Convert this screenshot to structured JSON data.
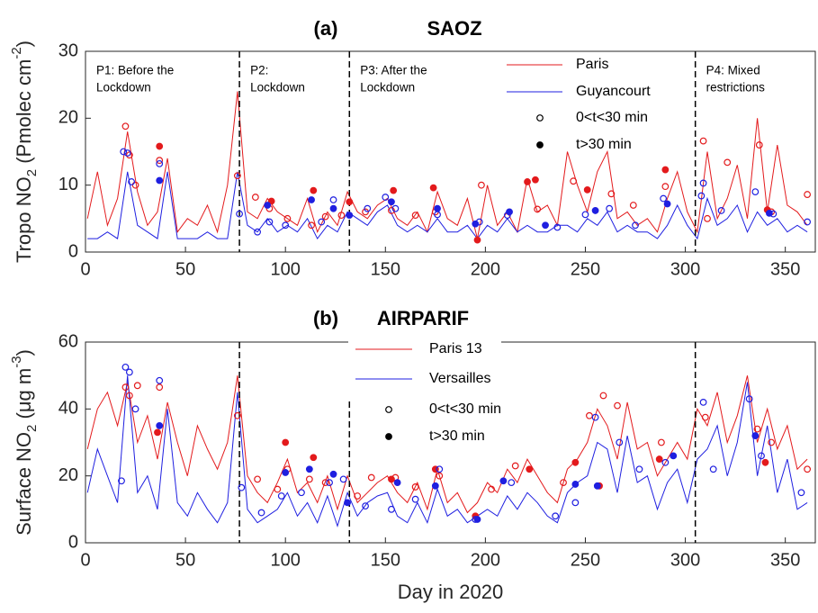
{
  "chart_data": [
    {
      "type": "line",
      "panel": "(a)",
      "title": "SAOZ",
      "ylabel": [
        "Tropo NO",
        "2",
        " (Pmolec cm",
        "-2",
        ")"
      ],
      "xlim": [
        0,
        365
      ],
      "xticks": [
        0,
        50,
        100,
        150,
        200,
        250,
        300,
        350
      ],
      "ylim": [
        0,
        30
      ],
      "yticks": [
        0,
        10,
        20,
        30
      ],
      "vlines": [
        77,
        132,
        305
      ],
      "annotations": [
        [
          "P1: Before the",
          "Lockdown"
        ],
        [
          "P2:",
          "Lockdown"
        ],
        [
          "P3: After the",
          "Lockdown"
        ],
        [
          "P4: Mixed",
          "restrictions"
        ]
      ],
      "marker_legend": [
        {
          "name": "0<t<30 min",
          "filled": false
        },
        {
          "name": "t>30 min",
          "filled": true
        }
      ],
      "x": [
        1,
        6,
        11,
        16,
        21,
        26,
        31,
        36,
        41,
        46,
        51,
        56,
        61,
        66,
        71,
        76,
        81,
        86,
        91,
        96,
        101,
        106,
        111,
        116,
        121,
        126,
        131,
        136,
        141,
        146,
        151,
        156,
        161,
        166,
        171,
        176,
        181,
        186,
        191,
        196,
        201,
        206,
        211,
        216,
        221,
        226,
        231,
        236,
        241,
        246,
        251,
        256,
        261,
        266,
        271,
        276,
        281,
        286,
        291,
        296,
        301,
        306,
        311,
        316,
        321,
        326,
        331,
        336,
        341,
        346,
        351,
        356,
        361
      ],
      "series": [
        {
          "name": "Paris",
          "color": "#e31a1c",
          "values": [
            5,
            12,
            4,
            8,
            18,
            9,
            4,
            6,
            14,
            3,
            5,
            4,
            7,
            3,
            10,
            24,
            6,
            5,
            8,
            6,
            5,
            4,
            8,
            3,
            6,
            4,
            9,
            6,
            5,
            7,
            8,
            5,
            4,
            6,
            3,
            9,
            5,
            4,
            8,
            2,
            10,
            4,
            6,
            3,
            11,
            6,
            7,
            4,
            15,
            10,
            6,
            12,
            15,
            5,
            6,
            4,
            5,
            3,
            8,
            12,
            6,
            3,
            15,
            5,
            8,
            13,
            5,
            20,
            6,
            16,
            7,
            6,
            4
          ],
          "open": {
            "x": [
              20,
              22,
              25,
              37,
              76,
              85,
              92,
              101,
              113,
              120,
              128,
              140,
              153,
              165,
              175,
              198,
              226,
              244,
              263,
              274,
              290,
              309,
              311,
              321,
              337,
              343,
              361
            ],
            "values": [
              18.8,
              14.5,
              10,
              13.7,
              11.4,
              8.2,
              6.5,
              5,
              4,
              5.3,
              5.5,
              6,
              6.2,
              5.5,
              6,
              10,
              6.4,
              10.6,
              8.7,
              7,
              9.8,
              16.6,
              5,
              13.4,
              16,
              6,
              8.6
            ]
          },
          "filled": {
            "x": [
              37,
              93,
              114,
              132,
              154,
              174,
              196,
              221,
              225,
              251,
              290,
              341
            ],
            "values": [
              15.8,
              7.6,
              9.2,
              7.5,
              9.2,
              9.6,
              1.8,
              10.5,
              10.8,
              9.3,
              12.3,
              6.3
            ]
          }
        },
        {
          "name": "Guyancourt",
          "color": "#1f1fe0",
          "values": [
            2,
            2,
            3,
            2,
            12,
            4,
            3,
            2,
            12,
            2,
            2,
            2,
            3,
            2,
            2,
            12,
            4,
            3,
            5,
            3,
            4,
            3,
            5,
            2,
            4,
            3,
            6,
            5,
            4,
            6,
            7,
            4,
            3,
            4,
            3,
            5,
            3,
            3,
            4,
            2,
            4,
            3,
            5,
            3,
            4,
            3,
            3,
            4,
            4,
            3,
            5,
            4,
            6,
            3,
            4,
            3,
            3,
            2,
            4,
            7,
            4,
            2,
            8,
            4,
            5,
            7,
            3,
            6,
            4,
            5,
            3,
            4,
            3
          ],
          "open": {
            "x": [
              19,
              21,
              23,
              37,
              77,
              86,
              92,
              100,
              118,
              124,
              141,
              150,
              155,
              176,
              197,
              211,
              236,
              250,
              262,
              275,
              289,
              308,
              309,
              318,
              335,
              344,
              361
            ],
            "values": [
              15,
              14.8,
              10.5,
              13.2,
              5.7,
              3,
              4.5,
              4,
              4.5,
              7.8,
              6.5,
              8.2,
              6.5,
              5.6,
              4.5,
              5.5,
              3.7,
              5.6,
              6.5,
              4,
              8,
              8.4,
              10.3,
              6.2,
              9,
              5.7,
              4.5
            ]
          },
          "filled": {
            "x": [
              37,
              91,
              113,
              124,
              132,
              153,
              176,
              195,
              212,
              230,
              255,
              291,
              342
            ],
            "values": [
              10.7,
              7,
              7.8,
              6.5,
              5.5,
              7.5,
              6.5,
              4.2,
              6,
              4,
              6.2,
              7.2,
              5.8
            ]
          }
        }
      ]
    },
    {
      "type": "line",
      "panel": "(b)",
      "title": "AIRPARIF",
      "ylabel": [
        "Surface NO",
        "2",
        " (μg m",
        "-3",
        ")"
      ],
      "xlabel": "Day in 2020",
      "xlim": [
        0,
        365
      ],
      "xticks": [
        0,
        50,
        100,
        150,
        200,
        250,
        300,
        350
      ],
      "ylim": [
        0,
        60
      ],
      "yticks": [
        0,
        20,
        40,
        60
      ],
      "vlines": [
        77,
        132,
        305
      ],
      "marker_legend": [
        {
          "name": "0<t<30 min",
          "filled": false
        },
        {
          "name": "t>30 min",
          "filled": true
        }
      ],
      "x": [
        1,
        6,
        11,
        16,
        21,
        26,
        31,
        36,
        41,
        46,
        51,
        56,
        61,
        66,
        71,
        76,
        81,
        86,
        91,
        96,
        101,
        106,
        111,
        116,
        121,
        126,
        131,
        136,
        141,
        146,
        151,
        156,
        161,
        166,
        171,
        176,
        181,
        186,
        191,
        196,
        201,
        206,
        211,
        216,
        221,
        226,
        231,
        236,
        241,
        246,
        251,
        256,
        261,
        266,
        271,
        276,
        281,
        286,
        291,
        296,
        301,
        306,
        311,
        316,
        321,
        326,
        331,
        336,
        341,
        346,
        351,
        356,
        361
      ],
      "series": [
        {
          "name": "Paris 13",
          "color": "#e31a1c",
          "values": [
            28,
            40,
            45,
            35,
            48,
            30,
            38,
            25,
            42,
            30,
            20,
            35,
            28,
            22,
            30,
            50,
            20,
            15,
            12,
            18,
            25,
            15,
            18,
            12,
            20,
            10,
            20,
            12,
            15,
            18,
            20,
            15,
            12,
            18,
            10,
            22,
            12,
            15,
            9,
            12,
            18,
            15,
            22,
            18,
            25,
            20,
            15,
            12,
            22,
            25,
            30,
            40,
            35,
            25,
            42,
            28,
            30,
            20,
            25,
            30,
            25,
            40,
            35,
            45,
            30,
            38,
            50,
            30,
            40,
            28,
            35,
            22,
            25
          ],
          "open": {
            "x": [
              20,
              22,
              26,
              37,
              76,
              86,
              96,
              101,
              112,
              120,
              136,
              143,
              155,
              165,
              177,
              203,
              215,
              239,
              252,
              259,
              266,
              288,
              310,
              336,
              343,
              361
            ],
            "values": [
              46.5,
              44,
              47,
              46.5,
              38,
              19,
              16,
              22,
              19,
              18,
              14,
              19.5,
              19.5,
              16.7,
              20,
              16,
              23,
              18,
              38,
              44,
              41,
              30,
              37.5,
              34,
              30,
              22
            ]
          },
          "filled": {
            "x": [
              36,
              100,
              114,
              153,
              175,
              195,
              222,
              245,
              257,
              287,
              340
            ],
            "values": [
              33,
              30,
              25.5,
              19,
              22,
              8,
              22,
              24,
              17,
              25,
              24
            ]
          }
        },
        {
          "name": "Versailles",
          "color": "#1f1fe0",
          "values": [
            15,
            28,
            20,
            12,
            50,
            15,
            20,
            10,
            40,
            12,
            8,
            15,
            10,
            6,
            12,
            45,
            10,
            6,
            8,
            10,
            15,
            8,
            12,
            6,
            14,
            5,
            15,
            8,
            12,
            14,
            15,
            8,
            6,
            12,
            6,
            16,
            8,
            10,
            6,
            8,
            10,
            8,
            14,
            10,
            15,
            12,
            8,
            6,
            15,
            18,
            20,
            30,
            28,
            15,
            32,
            18,
            20,
            10,
            18,
            22,
            12,
            25,
            28,
            35,
            20,
            30,
            48,
            20,
            35,
            15,
            25,
            10,
            12
          ],
          "open": {
            "x": [
              18,
              20,
              22,
              25,
              37,
              78,
              88,
              98,
              108,
              122,
              129,
              140,
              153,
              165,
              177,
              195,
              213,
              235,
              245,
              255,
              267,
              277,
              290,
              309,
              314,
              332,
              338,
              358
            ],
            "values": [
              18.5,
              52.5,
              51,
              40,
              48.5,
              16.5,
              9,
              14,
              15,
              18,
              19,
              11,
              10,
              13,
              22,
              7,
              18,
              8,
              12,
              37.5,
              30,
              22,
              24,
              42,
              22,
              43,
              26,
              15
            ]
          },
          "filled": {
            "x": [
              37,
              100,
              112,
              124,
              131,
              156,
              175,
              196,
              209,
              245,
              256,
              294,
              335
            ],
            "values": [
              35,
              21,
              22,
              20.5,
              12,
              18,
              17,
              7,
              18.5,
              17.5,
              17,
              26,
              32
            ]
          }
        }
      ]
    }
  ]
}
